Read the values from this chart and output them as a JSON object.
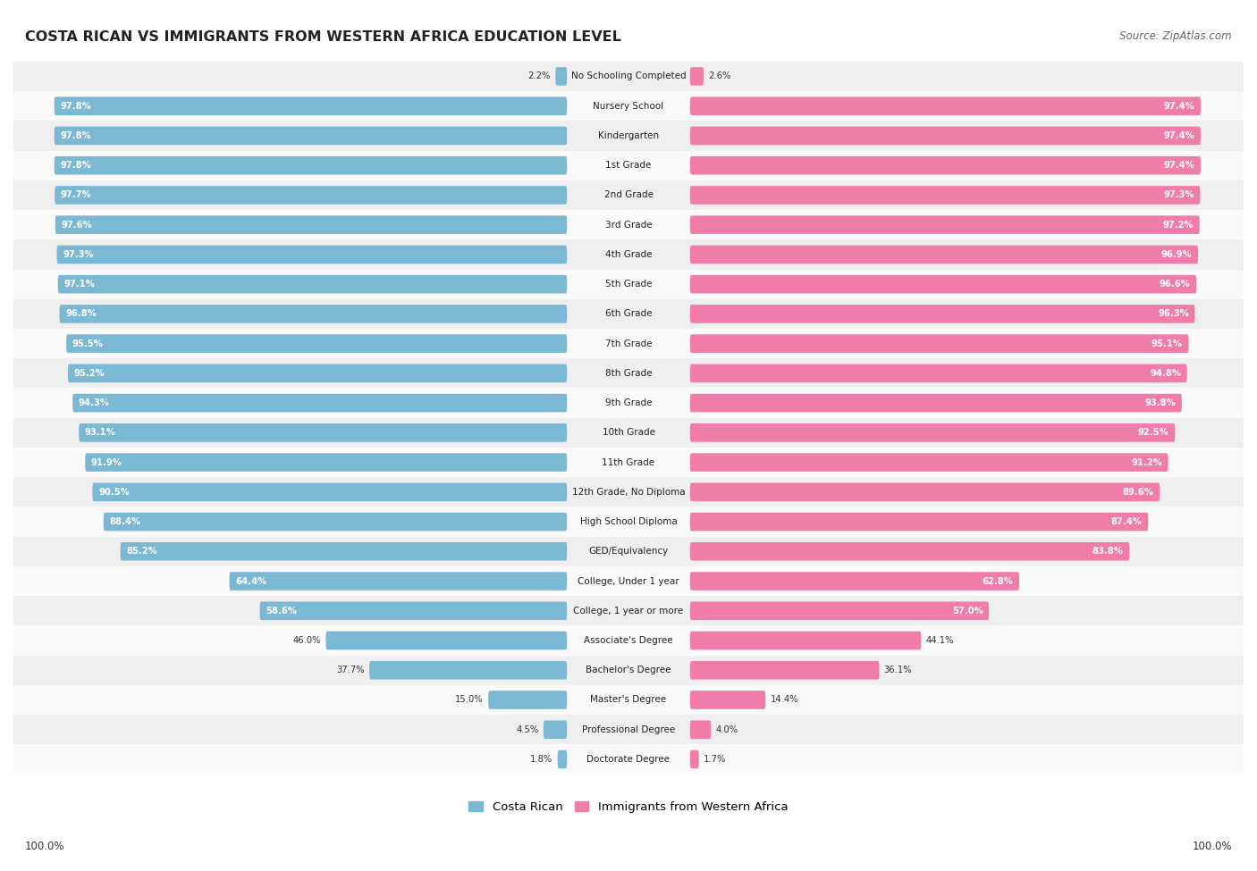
{
  "title": "COSTA RICAN VS IMMIGRANTS FROM WESTERN AFRICA EDUCATION LEVEL",
  "source": "Source: ZipAtlas.com",
  "categories": [
    "No Schooling Completed",
    "Nursery School",
    "Kindergarten",
    "1st Grade",
    "2nd Grade",
    "3rd Grade",
    "4th Grade",
    "5th Grade",
    "6th Grade",
    "7th Grade",
    "8th Grade",
    "9th Grade",
    "10th Grade",
    "11th Grade",
    "12th Grade, No Diploma",
    "High School Diploma",
    "GED/Equivalency",
    "College, Under 1 year",
    "College, 1 year or more",
    "Associate's Degree",
    "Bachelor's Degree",
    "Master's Degree",
    "Professional Degree",
    "Doctorate Degree"
  ],
  "costa_rican": [
    2.2,
    97.8,
    97.8,
    97.8,
    97.7,
    97.6,
    97.3,
    97.1,
    96.8,
    95.5,
    95.2,
    94.3,
    93.1,
    91.9,
    90.5,
    88.4,
    85.2,
    64.4,
    58.6,
    46.0,
    37.7,
    15.0,
    4.5,
    1.8
  ],
  "western_africa": [
    2.6,
    97.4,
    97.4,
    97.4,
    97.3,
    97.2,
    96.9,
    96.6,
    96.3,
    95.1,
    94.8,
    93.8,
    92.5,
    91.2,
    89.6,
    87.4,
    83.8,
    62.8,
    57.0,
    44.1,
    36.1,
    14.4,
    4.0,
    1.7
  ],
  "blue_color": "#7bb8d4",
  "pink_color": "#f07caa",
  "row_bg_even": "#efefef",
  "row_bg_odd": "#fafafa",
  "legend_blue": "Costa Rican",
  "legend_pink": "Immigrants from Western Africa",
  "left_label": "100.0%",
  "right_label": "100.0%"
}
